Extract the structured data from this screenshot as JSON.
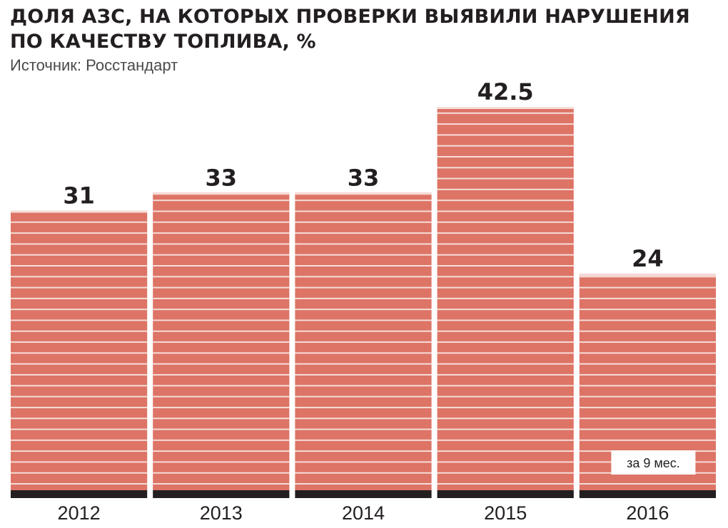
{
  "header": {
    "title_line1": "ДОЛЯ АЗС, НА КОТОРЫХ ПРОВЕРКИ ВЫЯВИЛИ НАРУШЕНИЯ",
    "title_line2": "ПО КАЧЕСТВУ ТОПЛИВА, %",
    "source": "Источник: Росстандарт"
  },
  "colors": {
    "bar": "#dd7466",
    "stripe": "#f6ddd8",
    "baseline": "#231f20",
    "text": "#231f20"
  },
  "chart_data": {
    "type": "bar",
    "title": "ДОЛЯ АЗС, НА КОТОРЫХ ПРОВЕРКИ ВЫЯВИЛИ НАРУШЕНИЯ ПО КАЧЕСТВУ ТОПЛИВА, %",
    "categories": [
      "2012",
      "2013",
      "2014",
      "2015",
      "2016"
    ],
    "values": [
      31,
      33,
      33,
      42.5,
      24
    ],
    "data_labels": [
      "31",
      "33",
      "33",
      "42.5",
      "24"
    ],
    "annotations": [
      {
        "category": "2016",
        "text": "за 9 мес."
      }
    ],
    "xlabel": "",
    "ylabel": "",
    "ylim": [
      0,
      42.5
    ],
    "grid": false,
    "legend": "none"
  }
}
